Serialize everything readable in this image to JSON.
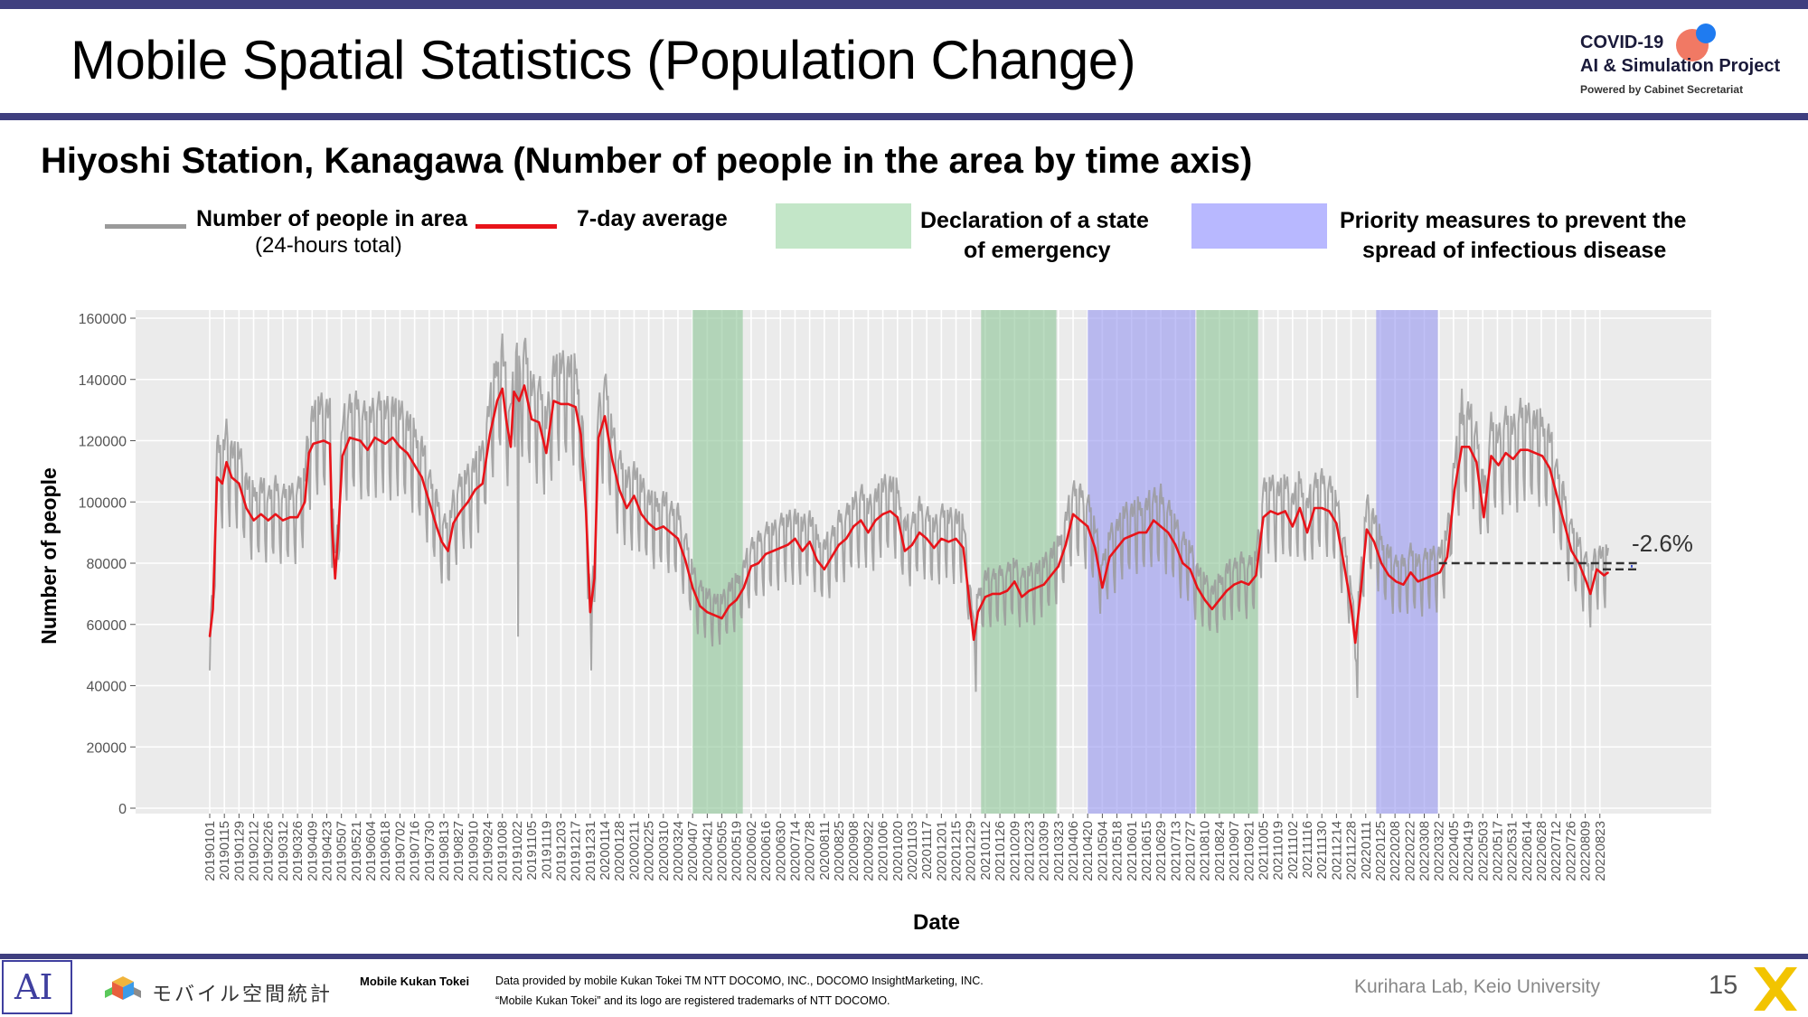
{
  "slide": {
    "title": "Mobile Spatial Statistics (Population Change)",
    "subtitle": "Hiyoshi Station, Kanagawa (Number of people in the area by time axis)",
    "page_number": "15",
    "colors": {
      "accent_bar": "#3f3f7f"
    }
  },
  "logo": {
    "line1": "COVID-19",
    "line2": "AI & Simulation Project",
    "line3": "Powered by Cabinet Secretariat"
  },
  "legend": {
    "area_label": "Number of people in area",
    "area_sub": "(24-hours total)",
    "avg_label": "7-day average",
    "emergency_label_1": "Declaration of a state",
    "emergency_label_2": "of emergency",
    "priority_label_1": "Priority measures to prevent the",
    "priority_label_2": "spread of infectious disease",
    "colors": {
      "area": "#9a9a9a",
      "avg": "#e8141a",
      "emergency": "#c3e6c8",
      "priority": "#b8b8ff"
    }
  },
  "footer": {
    "ai_mark": "AI",
    "mobile_logo_text": "モバイル空間統計",
    "label": "Mobile Kukan Tokei",
    "credit1": "Data provided by mobile Kukan Tokei TM NTT DOCOMO, INC., DOCOMO InsightMarketing, INC.",
    "credit2": "“Mobile Kukan Tokei” and its logo are registered trademarks of NTT DOCOMO.",
    "lab": "Kurihara Lab, Keio University"
  },
  "chart_data": {
    "type": "line",
    "xlabel": "Date",
    "ylabel": "Number of people",
    "ylim": [
      0,
      160000
    ],
    "y_ticks": [
      "0",
      "20000",
      "40000",
      "60000",
      "80000",
      "100000",
      "120000",
      "140000",
      "160000"
    ],
    "y_tick_values": [
      0,
      20000,
      40000,
      60000,
      80000,
      100000,
      120000,
      140000,
      160000
    ],
    "x_start_date": "2019-01-01",
    "x_end_date": "2022-08-31",
    "x_ticks": [
      "20190101",
      "20190115",
      "20190129",
      "20190212",
      "20190226",
      "20190312",
      "20190326",
      "20190409",
      "20190423",
      "20190507",
      "20190521",
      "20190604",
      "20190618",
      "20190702",
      "20190716",
      "20190730",
      "20190813",
      "20190827",
      "20190910",
      "20190924",
      "20191008",
      "20191022",
      "20191105",
      "20191119",
      "20191203",
      "20191217",
      "20191231",
      "20200114",
      "20200128",
      "20200211",
      "20200225",
      "20200310",
      "20200324",
      "20200407",
      "20200421",
      "20200505",
      "20200519",
      "20200602",
      "20200616",
      "20200630",
      "20200714",
      "20200728",
      "20200811",
      "20200825",
      "20200908",
      "20200922",
      "20201006",
      "20201020",
      "20201103",
      "20201117",
      "20201201",
      "20201215",
      "20201229",
      "20210112",
      "20210126",
      "20210209",
      "20210223",
      "20210309",
      "20210323",
      "20210406",
      "20210420",
      "20210504",
      "20210518",
      "20210601",
      "20210615",
      "20210629",
      "20210713",
      "20210727",
      "20210810",
      "20210824",
      "20210907",
      "20210921",
      "20211005",
      "20211019",
      "20211102",
      "20211116",
      "20211130",
      "20211214",
      "20211228",
      "20220111",
      "20220125",
      "20220208",
      "20220222",
      "20220308",
      "20220322",
      "20220405",
      "20220419",
      "20220503",
      "20220517",
      "20220531",
      "20220614",
      "20220628",
      "20220712",
      "20220726",
      "20220809",
      "20220823"
    ],
    "grid": true,
    "shaded_periods": [
      {
        "kind": "emergency",
        "start": "2020-04-07",
        "end": "2020-05-25"
      },
      {
        "kind": "emergency",
        "start": "2021-01-08",
        "end": "2021-03-21"
      },
      {
        "kind": "priority",
        "start": "2021-04-20",
        "end": "2021-08-01"
      },
      {
        "kind": "emergency",
        "start": "2021-08-02",
        "end": "2021-09-30"
      },
      {
        "kind": "priority",
        "start": "2022-01-21",
        "end": "2022-03-21"
      }
    ],
    "series": [
      {
        "name": "7-day average",
        "points": [
          [
            "2019-01-01",
            56000
          ],
          [
            "2019-01-04",
            65000
          ],
          [
            "2019-01-08",
            108000
          ],
          [
            "2019-01-13",
            106000
          ],
          [
            "2019-01-17",
            113000
          ],
          [
            "2019-01-22",
            108000
          ],
          [
            "2019-01-29",
            106000
          ],
          [
            "2019-02-05",
            98000
          ],
          [
            "2019-02-12",
            94000
          ],
          [
            "2019-02-19",
            96000
          ],
          [
            "2019-02-26",
            94000
          ],
          [
            "2019-03-05",
            96000
          ],
          [
            "2019-03-12",
            94000
          ],
          [
            "2019-03-19",
            95000
          ],
          [
            "2019-03-26",
            95000
          ],
          [
            "2019-04-02",
            100000
          ],
          [
            "2019-04-06",
            116000
          ],
          [
            "2019-04-10",
            119000
          ],
          [
            "2019-04-20",
            120000
          ],
          [
            "2019-04-26",
            119000
          ],
          [
            "2019-04-28",
            92000
          ],
          [
            "2019-05-01",
            75000
          ],
          [
            "2019-05-04",
            90000
          ],
          [
            "2019-05-08",
            115000
          ],
          [
            "2019-05-15",
            121000
          ],
          [
            "2019-05-25",
            120000
          ],
          [
            "2019-06-01",
            117000
          ],
          [
            "2019-06-08",
            121000
          ],
          [
            "2019-06-18",
            119000
          ],
          [
            "2019-06-25",
            121000
          ],
          [
            "2019-07-02",
            118000
          ],
          [
            "2019-07-09",
            116000
          ],
          [
            "2019-07-16",
            112000
          ],
          [
            "2019-07-23",
            108000
          ],
          [
            "2019-07-30",
            100000
          ],
          [
            "2019-08-06",
            92000
          ],
          [
            "2019-08-11",
            87000
          ],
          [
            "2019-08-17",
            84000
          ],
          [
            "2019-08-22",
            93000
          ],
          [
            "2019-08-29",
            97000
          ],
          [
            "2019-09-05",
            100000
          ],
          [
            "2019-09-12",
            104000
          ],
          [
            "2019-09-19",
            106000
          ],
          [
            "2019-09-26",
            122000
          ],
          [
            "2019-10-03",
            133000
          ],
          [
            "2019-10-08",
            137000
          ],
          [
            "2019-10-12",
            126000
          ],
          [
            "2019-10-16",
            118000
          ],
          [
            "2019-10-19",
            136000
          ],
          [
            "2019-10-24",
            133000
          ],
          [
            "2019-10-29",
            138000
          ],
          [
            "2019-11-05",
            127000
          ],
          [
            "2019-11-12",
            126000
          ],
          [
            "2019-11-19",
            116000
          ],
          [
            "2019-11-26",
            133000
          ],
          [
            "2019-12-03",
            132000
          ],
          [
            "2019-12-10",
            132000
          ],
          [
            "2019-12-17",
            131000
          ],
          [
            "2019-12-22",
            122000
          ],
          [
            "2019-12-27",
            97000
          ],
          [
            "2019-12-31",
            64000
          ],
          [
            "2020-01-04",
            75000
          ],
          [
            "2020-01-08",
            121000
          ],
          [
            "2020-01-14",
            128000
          ],
          [
            "2020-01-21",
            114000
          ],
          [
            "2020-01-28",
            104000
          ],
          [
            "2020-02-04",
            98000
          ],
          [
            "2020-02-11",
            102000
          ],
          [
            "2020-02-18",
            96000
          ],
          [
            "2020-02-25",
            93000
          ],
          [
            "2020-03-03",
            91000
          ],
          [
            "2020-03-10",
            92000
          ],
          [
            "2020-03-17",
            90000
          ],
          [
            "2020-03-24",
            88000
          ],
          [
            "2020-03-31",
            81000
          ],
          [
            "2020-04-07",
            72000
          ],
          [
            "2020-04-14",
            66000
          ],
          [
            "2020-04-21",
            64000
          ],
          [
            "2020-04-28",
            63000
          ],
          [
            "2020-05-05",
            62000
          ],
          [
            "2020-05-12",
            66000
          ],
          [
            "2020-05-19",
            68000
          ],
          [
            "2020-05-26",
            72000
          ],
          [
            "2020-06-02",
            79000
          ],
          [
            "2020-06-09",
            80000
          ],
          [
            "2020-06-16",
            83000
          ],
          [
            "2020-06-23",
            84000
          ],
          [
            "2020-06-30",
            85000
          ],
          [
            "2020-07-07",
            86000
          ],
          [
            "2020-07-14",
            88000
          ],
          [
            "2020-07-21",
            84000
          ],
          [
            "2020-07-28",
            87000
          ],
          [
            "2020-08-04",
            81000
          ],
          [
            "2020-08-11",
            78000
          ],
          [
            "2020-08-18",
            82000
          ],
          [
            "2020-08-25",
            86000
          ],
          [
            "2020-09-01",
            88000
          ],
          [
            "2020-09-08",
            92000
          ],
          [
            "2020-09-15",
            94000
          ],
          [
            "2020-09-22",
            90000
          ],
          [
            "2020-09-29",
            94000
          ],
          [
            "2020-10-06",
            96000
          ],
          [
            "2020-10-13",
            97000
          ],
          [
            "2020-10-20",
            95000
          ],
          [
            "2020-10-27",
            84000
          ],
          [
            "2020-11-03",
            86000
          ],
          [
            "2020-11-10",
            90000
          ],
          [
            "2020-11-17",
            88000
          ],
          [
            "2020-11-24",
            85000
          ],
          [
            "2020-12-01",
            88000
          ],
          [
            "2020-12-08",
            87000
          ],
          [
            "2020-12-15",
            88000
          ],
          [
            "2020-12-22",
            85000
          ],
          [
            "2020-12-27",
            70000
          ],
          [
            "2021-01-01",
            55000
          ],
          [
            "2021-01-05",
            64000
          ],
          [
            "2021-01-12",
            69000
          ],
          [
            "2021-01-19",
            70000
          ],
          [
            "2021-01-26",
            70000
          ],
          [
            "2021-02-02",
            71000
          ],
          [
            "2021-02-09",
            74000
          ],
          [
            "2021-02-16",
            69000
          ],
          [
            "2021-02-23",
            71000
          ],
          [
            "2021-03-02",
            72000
          ],
          [
            "2021-03-09",
            73000
          ],
          [
            "2021-03-16",
            76000
          ],
          [
            "2021-03-23",
            79000
          ],
          [
            "2021-03-30",
            86000
          ],
          [
            "2021-04-06",
            96000
          ],
          [
            "2021-04-13",
            94000
          ],
          [
            "2021-04-20",
            92000
          ],
          [
            "2021-04-27",
            85000
          ],
          [
            "2021-05-04",
            72000
          ],
          [
            "2021-05-11",
            82000
          ],
          [
            "2021-05-18",
            85000
          ],
          [
            "2021-05-25",
            88000
          ],
          [
            "2021-06-01",
            89000
          ],
          [
            "2021-06-08",
            90000
          ],
          [
            "2021-06-15",
            90000
          ],
          [
            "2021-06-22",
            94000
          ],
          [
            "2021-06-29",
            92000
          ],
          [
            "2021-07-06",
            90000
          ],
          [
            "2021-07-13",
            86000
          ],
          [
            "2021-07-20",
            80000
          ],
          [
            "2021-07-27",
            78000
          ],
          [
            "2021-08-03",
            72000
          ],
          [
            "2021-08-10",
            68000
          ],
          [
            "2021-08-17",
            65000
          ],
          [
            "2021-08-24",
            68000
          ],
          [
            "2021-08-31",
            71000
          ],
          [
            "2021-09-07",
            73000
          ],
          [
            "2021-09-14",
            74000
          ],
          [
            "2021-09-21",
            73000
          ],
          [
            "2021-09-28",
            76000
          ],
          [
            "2021-10-05",
            95000
          ],
          [
            "2021-10-12",
            97000
          ],
          [
            "2021-10-19",
            96000
          ],
          [
            "2021-10-26",
            97000
          ],
          [
            "2021-11-02",
            92000
          ],
          [
            "2021-11-09",
            98000
          ],
          [
            "2021-11-16",
            90000
          ],
          [
            "2021-11-23",
            98000
          ],
          [
            "2021-11-30",
            98000
          ],
          [
            "2021-12-07",
            97000
          ],
          [
            "2021-12-14",
            93000
          ],
          [
            "2021-12-21",
            80000
          ],
          [
            "2021-12-28",
            66000
          ],
          [
            "2022-01-01",
            54000
          ],
          [
            "2022-01-06",
            70000
          ],
          [
            "2022-01-12",
            91000
          ],
          [
            "2022-01-19",
            87000
          ],
          [
            "2022-01-26",
            80000
          ],
          [
            "2022-02-02",
            76000
          ],
          [
            "2022-02-09",
            74000
          ],
          [
            "2022-02-16",
            73000
          ],
          [
            "2022-02-23",
            77000
          ],
          [
            "2022-03-02",
            74000
          ],
          [
            "2022-03-09",
            75000
          ],
          [
            "2022-03-16",
            76000
          ],
          [
            "2022-03-23",
            77000
          ],
          [
            "2022-03-30",
            82000
          ],
          [
            "2022-04-06",
            104000
          ],
          [
            "2022-04-13",
            118000
          ],
          [
            "2022-04-20",
            118000
          ],
          [
            "2022-04-27",
            113000
          ],
          [
            "2022-05-04",
            95000
          ],
          [
            "2022-05-11",
            115000
          ],
          [
            "2022-05-18",
            112000
          ],
          [
            "2022-05-25",
            116000
          ],
          [
            "2022-06-01",
            114000
          ],
          [
            "2022-06-08",
            117000
          ],
          [
            "2022-06-15",
            117000
          ],
          [
            "2022-06-22",
            116000
          ],
          [
            "2022-06-29",
            115000
          ],
          [
            "2022-07-06",
            111000
          ],
          [
            "2022-07-13",
            102000
          ],
          [
            "2022-07-20",
            93000
          ],
          [
            "2022-07-27",
            84000
          ],
          [
            "2022-08-03",
            80000
          ],
          [
            "2022-08-10",
            74000
          ],
          [
            "2022-08-14",
            70000
          ],
          [
            "2022-08-20",
            78000
          ],
          [
            "2022-08-27",
            76000
          ],
          [
            "2022-08-31",
            77000
          ]
        ]
      },
      {
        "name": "Number of people in area",
        "note": "daily values oscillate around the 7-day average, weekday peaks roughly 12000-20000 above it and weekend troughs roughly 10000-15000 below it",
        "min_visible": [
          [
            "2019-01-01",
            45000
          ],
          [
            "2019-10-23",
            56000
          ],
          [
            "2020-01-01",
            45000
          ],
          [
            "2021-01-03",
            38000
          ],
          [
            "2022-01-03",
            36000
          ],
          [
            "2022-08-14",
            59000
          ]
        ],
        "max_visible": [
          [
            "2019-10-08",
            155000
          ],
          [
            "2019-10-29",
            152000
          ],
          [
            "2022-04-13",
            137000
          ],
          [
            "2022-06-08",
            134000
          ],
          [
            "2021-06-29",
            106000
          ],
          [
            "2021-04-13",
            106000
          ]
        ]
      }
    ],
    "annotation": {
      "text": "-2.6%",
      "baseline_value": 80000,
      "baseline_from": "2022-03-22",
      "end_value": 78000
    }
  }
}
